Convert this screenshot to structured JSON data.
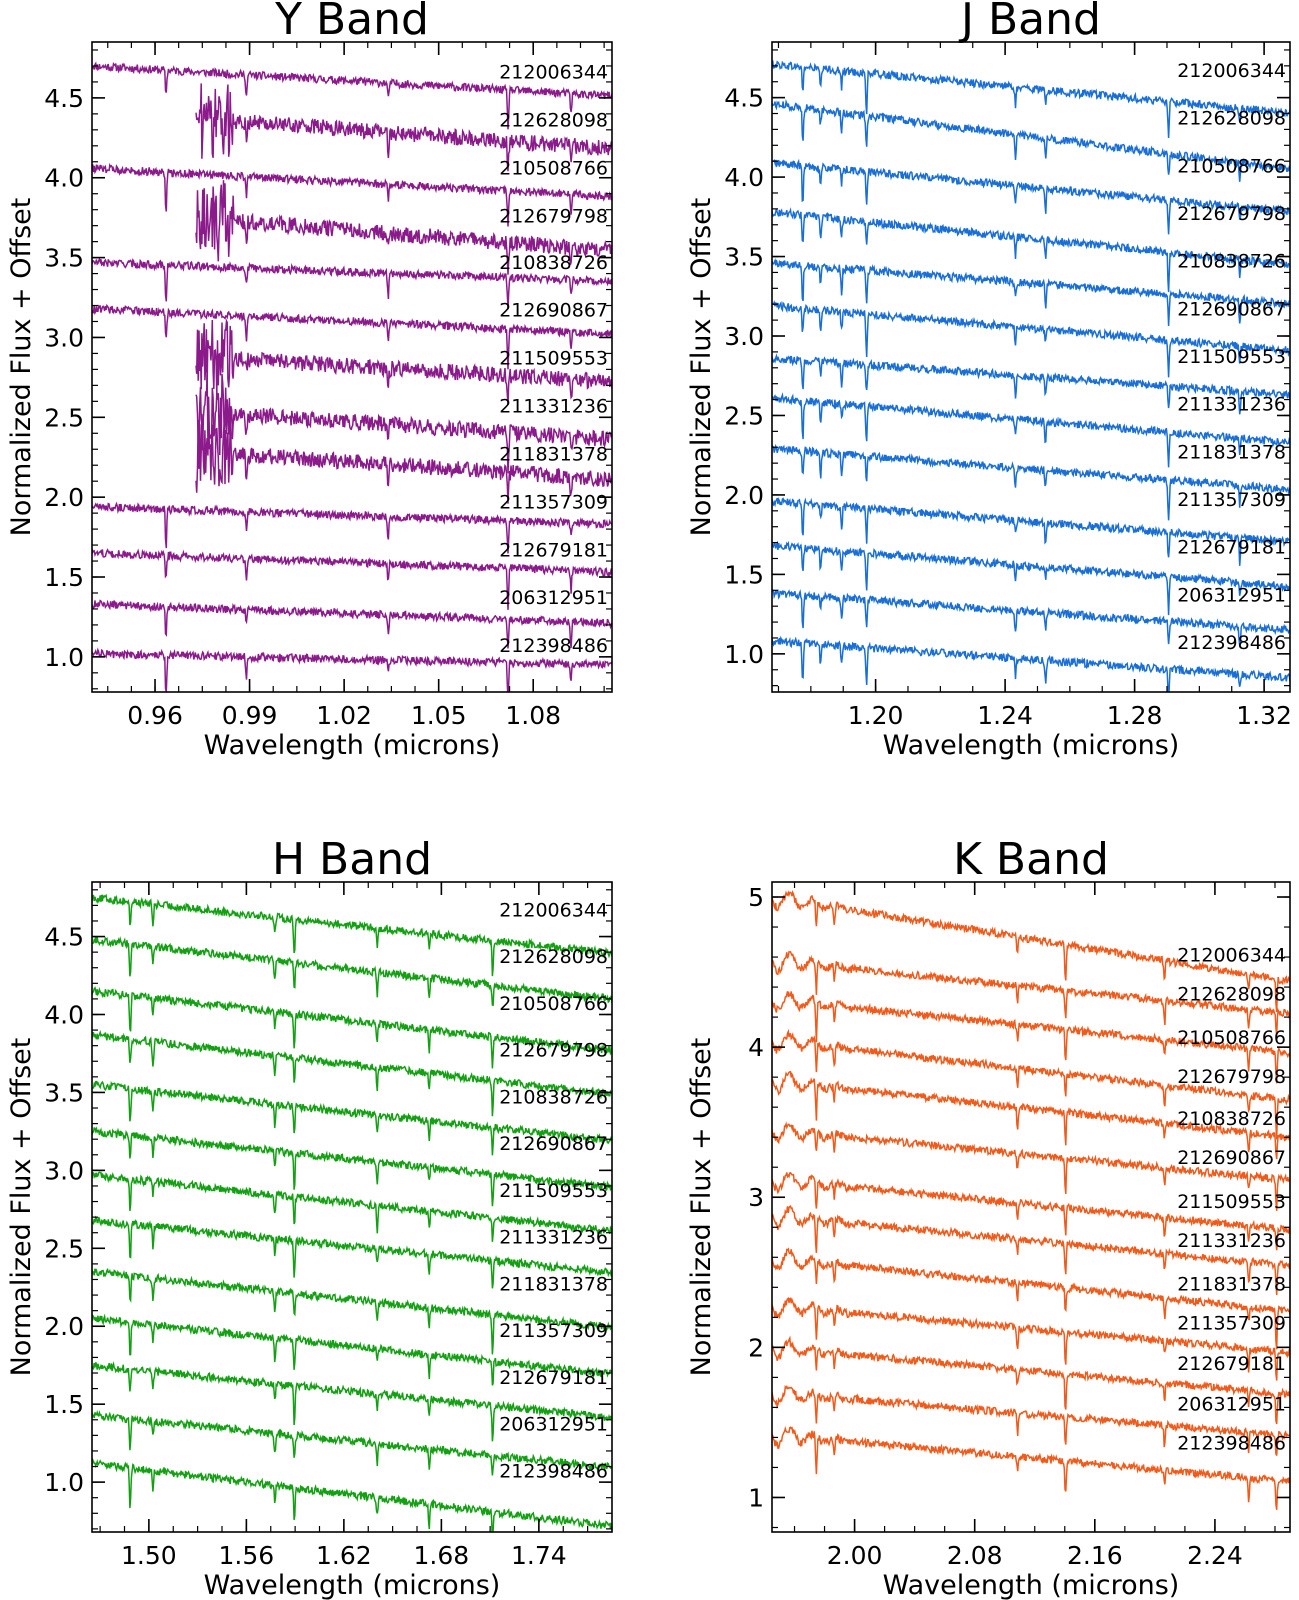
{
  "chart_data": [
    {
      "type": "line",
      "title": "Y Band",
      "xlabel": "Wavelength (microns)",
      "ylabel": "Normalized Flux + Offset",
      "color": "#8b1a8b",
      "xlim": [
        0.94,
        1.105
      ],
      "ylim": [
        0.78,
        4.85
      ],
      "xticks": [
        0.96,
        0.99,
        1.02,
        1.05,
        1.08
      ],
      "xtick_labels": [
        "0.96",
        "0.99",
        "1.02",
        "1.05",
        "1.08"
      ],
      "yticks": [
        1.0,
        1.5,
        2.0,
        2.5,
        3.0,
        3.5,
        4.0,
        4.5
      ],
      "ytick_labels": [
        "1.0",
        "1.5",
        "2.0",
        "2.5",
        "3.0",
        "3.5",
        "4.0",
        "4.5"
      ],
      "grid": false,
      "series": [
        {
          "name": "212006344",
          "start": 0.94,
          "base": 4.7,
          "slope": 0.95,
          "label_y": 4.62
        },
        {
          "name": "212628098",
          "start": 0.973,
          "base": 4.42,
          "slope": 1.2,
          "label_y": 4.32
        },
        {
          "name": "210508766",
          "start": 0.94,
          "base": 4.06,
          "slope": 0.9,
          "label_y": 4.02
        },
        {
          "name": "212679798",
          "start": 0.973,
          "base": 3.8,
          "slope": 1.3,
          "label_y": 3.72
        },
        {
          "name": "210838726",
          "start": 0.94,
          "base": 3.47,
          "slope": 0.6,
          "label_y": 3.43
        },
        {
          "name": "212690867",
          "start": 0.94,
          "base": 3.18,
          "slope": 0.8,
          "label_y": 3.13
        },
        {
          "name": "211509553",
          "start": 0.973,
          "base": 2.92,
          "slope": 1.0,
          "label_y": 2.83
        },
        {
          "name": "211331236",
          "start": 0.973,
          "base": 2.58,
          "slope": 1.1,
          "label_y": 2.53
        },
        {
          "name": "211831378",
          "start": 0.973,
          "base": 2.33,
          "slope": 1.1,
          "label_y": 2.23
        },
        {
          "name": "211357309",
          "start": 0.94,
          "base": 1.94,
          "slope": 0.55,
          "label_y": 1.93
        },
        {
          "name": "212679181",
          "start": 0.94,
          "base": 1.65,
          "slope": 0.6,
          "label_y": 1.63
        },
        {
          "name": "206312951",
          "start": 0.94,
          "base": 1.33,
          "slope": 0.6,
          "label_y": 1.33
        },
        {
          "name": "212398486",
          "start": 0.94,
          "base": 1.02,
          "slope": 0.35,
          "label_y": 1.03
        }
      ],
      "lines_at": [
        0.9635,
        0.989,
        1.034,
        1.072,
        1.092
      ]
    },
    {
      "type": "line",
      "title": "J Band",
      "xlabel": "Wavelength (microns)",
      "ylabel": "Normalized Flux + Offset",
      "color": "#1a6fd6",
      "xlim": [
        1.168,
        1.328
      ],
      "ylim": [
        0.76,
        4.85
      ],
      "xticks": [
        1.2,
        1.24,
        1.28,
        1.32
      ],
      "xtick_labels": [
        "1.20",
        "1.24",
        "1.28",
        "1.32"
      ],
      "yticks": [
        1.0,
        1.5,
        2.0,
        2.5,
        3.0,
        3.5,
        4.0,
        4.5
      ],
      "ytick_labels": [
        "1.0",
        "1.5",
        "2.0",
        "2.5",
        "3.0",
        "3.5",
        "4.0",
        "4.5"
      ],
      "grid": false,
      "series": [
        {
          "name": "212006344",
          "start": 1.168,
          "base": 4.71,
          "slope": 1.2,
          "label_y": 4.63
        },
        {
          "name": "212628098",
          "start": 1.168,
          "base": 4.46,
          "slope": 1.6,
          "label_y": 4.33
        },
        {
          "name": "210508766",
          "start": 1.168,
          "base": 4.09,
          "slope": 1.2,
          "label_y": 4.03
        },
        {
          "name": "212679798",
          "start": 1.168,
          "base": 3.78,
          "slope": 1.3,
          "label_y": 3.73
        },
        {
          "name": "210838726",
          "start": 1.168,
          "base": 3.46,
          "slope": 1.0,
          "label_y": 3.43
        },
        {
          "name": "212690867",
          "start": 1.168,
          "base": 3.19,
          "slope": 1.1,
          "label_y": 3.13
        },
        {
          "name": "211509553",
          "start": 1.168,
          "base": 2.86,
          "slope": 0.9,
          "label_y": 2.83
        },
        {
          "name": "211331236",
          "start": 1.168,
          "base": 2.61,
          "slope": 1.1,
          "label_y": 2.53
        },
        {
          "name": "211831378",
          "start": 1.168,
          "base": 2.29,
          "slope": 1.0,
          "label_y": 2.23
        },
        {
          "name": "211357309",
          "start": 1.168,
          "base": 1.96,
          "slope": 1.0,
          "label_y": 1.93
        },
        {
          "name": "212679181",
          "start": 1.168,
          "base": 1.68,
          "slope": 1.0,
          "label_y": 1.63
        },
        {
          "name": "206312951",
          "start": 1.168,
          "base": 1.38,
          "slope": 0.9,
          "label_y": 1.33
        },
        {
          "name": "212398486",
          "start": 1.168,
          "base": 1.08,
          "slope": 0.9,
          "label_y": 1.03
        }
      ],
      "lines_at": [
        1.1775,
        1.183,
        1.1895,
        1.1972,
        1.2432,
        1.2525,
        1.2905,
        1.3125
      ]
    },
    {
      "type": "line",
      "title": "H Band",
      "xlabel": "Wavelength (microns)",
      "ylabel": "Normalized Flux + Offset",
      "color": "#13a013",
      "xlim": [
        1.465,
        1.785
      ],
      "ylim": [
        0.68,
        4.85
      ],
      "xticks": [
        1.5,
        1.56,
        1.62,
        1.68,
        1.74
      ],
      "xtick_labels": [
        "1.50",
        "1.56",
        "1.62",
        "1.68",
        "1.74"
      ],
      "yticks": [
        1.0,
        1.5,
        2.0,
        2.5,
        3.0,
        3.5,
        4.0,
        4.5
      ],
      "ytick_labels": [
        "1.0",
        "1.5",
        "2.0",
        "2.5",
        "3.0",
        "3.5",
        "4.0",
        "4.5"
      ],
      "grid": false,
      "series": [
        {
          "name": "212006344",
          "start": 1.465,
          "base": 4.75,
          "slope": 0.8,
          "label_y": 4.63
        },
        {
          "name": "212628098",
          "start": 1.465,
          "base": 4.48,
          "slope": 0.85,
          "label_y": 4.33
        },
        {
          "name": "210508766",
          "start": 1.465,
          "base": 4.15,
          "slope": 0.85,
          "label_y": 4.03
        },
        {
          "name": "212679798",
          "start": 1.465,
          "base": 3.87,
          "slope": 0.85,
          "label_y": 3.73
        },
        {
          "name": "210838726",
          "start": 1.465,
          "base": 3.55,
          "slope": 0.8,
          "label_y": 3.43
        },
        {
          "name": "212690867",
          "start": 1.465,
          "base": 3.25,
          "slope": 0.8,
          "label_y": 3.13
        },
        {
          "name": "211509553",
          "start": 1.465,
          "base": 2.97,
          "slope": 0.8,
          "label_y": 2.83
        },
        {
          "name": "211331236",
          "start": 1.465,
          "base": 2.68,
          "slope": 0.75,
          "label_y": 2.53
        },
        {
          "name": "211831378",
          "start": 1.465,
          "base": 2.35,
          "slope": 0.8,
          "label_y": 2.23
        },
        {
          "name": "211357309",
          "start": 1.465,
          "base": 2.05,
          "slope": 0.8,
          "label_y": 1.93
        },
        {
          "name": "212679181",
          "start": 1.465,
          "base": 1.75,
          "slope": 0.75,
          "label_y": 1.63
        },
        {
          "name": "206312951",
          "start": 1.465,
          "base": 1.43,
          "slope": 0.75,
          "label_y": 1.33
        },
        {
          "name": "212398486",
          "start": 1.465,
          "base": 1.12,
          "slope": 0.9,
          "label_y": 1.03
        }
      ],
      "lines_at": [
        1.4885,
        1.5025,
        1.5775,
        1.5895,
        1.6405,
        1.6725,
        1.7115
      ]
    },
    {
      "type": "line",
      "title": "K Band",
      "xlabel": "Wavelength (microns)",
      "ylabel": "Normalized Flux + Offset",
      "color": "#f05a1a",
      "xlim": [
        1.945,
        2.29
      ],
      "ylim": [
        0.77,
        5.1
      ],
      "xticks": [
        2.0,
        2.08,
        2.16,
        2.24
      ],
      "xtick_labels": [
        "2.00",
        "2.08",
        "2.16",
        "2.24"
      ],
      "yticks": [
        1,
        2,
        3,
        4,
        5
      ],
      "ytick_labels": [
        "1",
        "2",
        "3",
        "4",
        "5"
      ],
      "grid": false,
      "series": [
        {
          "name": "212006344",
          "start": 1.945,
          "base": 5.0,
          "slope": 1.25,
          "label_y": 4.57
        },
        {
          "name": "212628098",
          "start": 1.945,
          "base": 4.58,
          "slope": 0.8,
          "label_y": 4.31
        },
        {
          "name": "210508766",
          "start": 1.945,
          "base": 4.32,
          "slope": 0.8,
          "label_y": 4.02
        },
        {
          "name": "212679798",
          "start": 1.945,
          "base": 4.05,
          "slope": 0.9,
          "label_y": 3.76
        },
        {
          "name": "210838726",
          "start": 1.945,
          "base": 3.78,
          "slope": 0.85,
          "label_y": 3.48
        },
        {
          "name": "212690867",
          "start": 1.945,
          "base": 3.45,
          "slope": 0.75,
          "label_y": 3.22
        },
        {
          "name": "211509553",
          "start": 1.945,
          "base": 3.12,
          "slope": 0.75,
          "label_y": 2.93
        },
        {
          "name": "211331236",
          "start": 1.945,
          "base": 2.88,
          "slope": 0.75,
          "label_y": 2.67
        },
        {
          "name": "211831378",
          "start": 1.945,
          "base": 2.6,
          "slope": 0.8,
          "label_y": 2.38
        },
        {
          "name": "211357309",
          "start": 1.945,
          "base": 2.28,
          "slope": 0.7,
          "label_y": 2.12
        },
        {
          "name": "212679181",
          "start": 1.945,
          "base": 2.0,
          "slope": 0.7,
          "label_y": 1.85
        },
        {
          "name": "206312951",
          "start": 1.945,
          "base": 1.7,
          "slope": 0.65,
          "label_y": 1.58
        },
        {
          "name": "212398486",
          "start": 1.945,
          "base": 1.42,
          "slope": 0.7,
          "label_y": 1.32
        }
      ],
      "lines_at": [
        1.9745,
        1.9865,
        2.1085,
        2.1405,
        2.2065,
        2.2625,
        2.281
      ]
    }
  ]
}
